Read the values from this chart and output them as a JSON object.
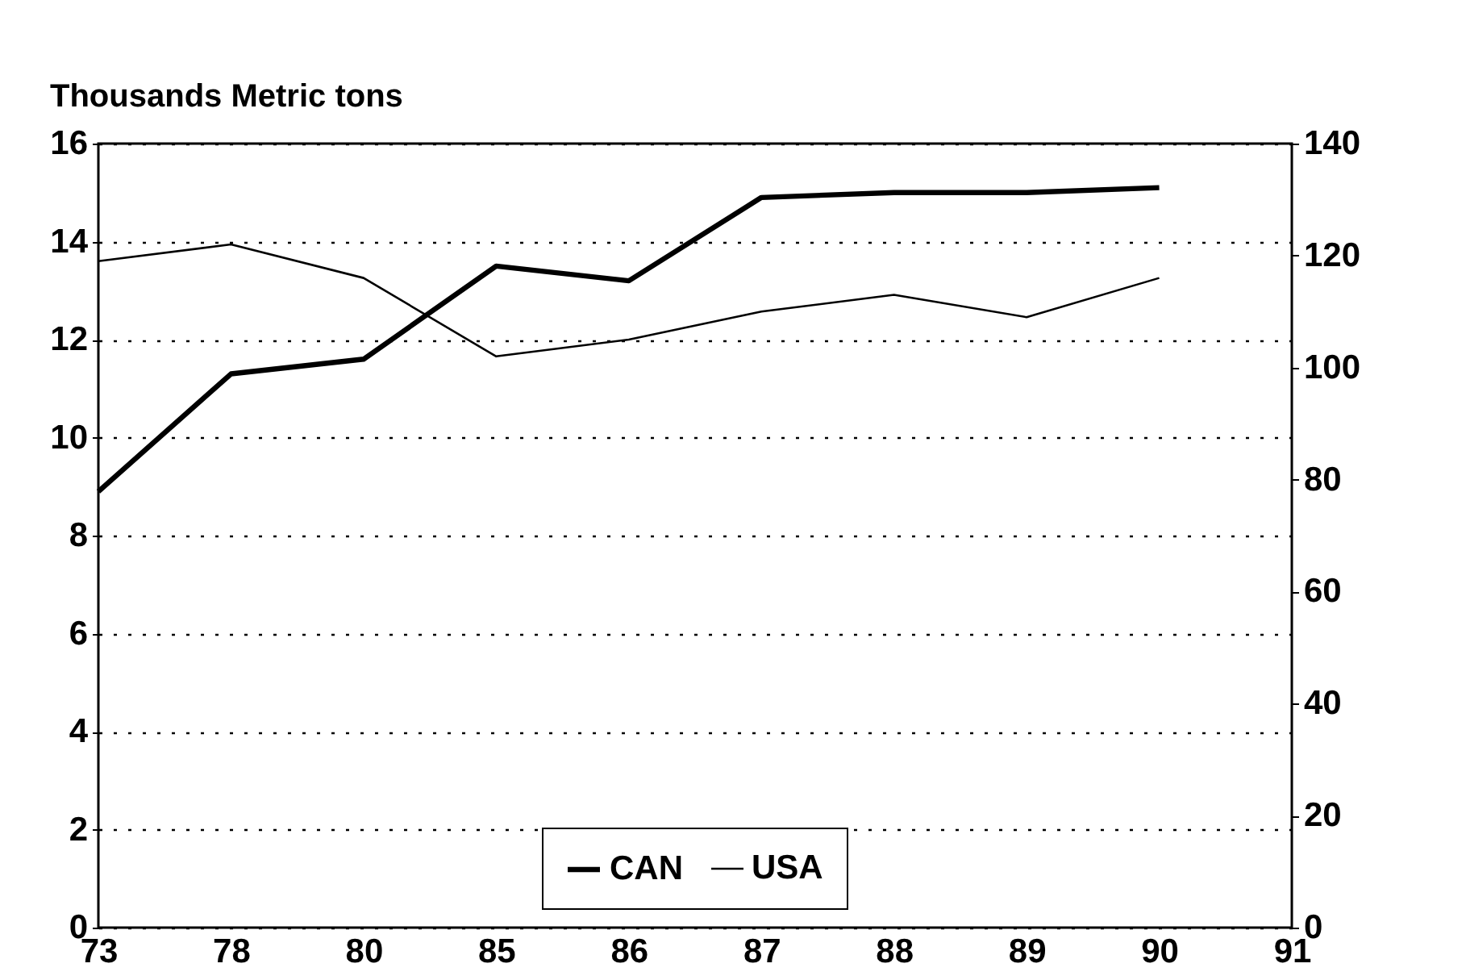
{
  "chart_data": {
    "type": "line",
    "title": "Thousands Metric tons",
    "categories": [
      "73",
      "78",
      "80",
      "85",
      "86",
      "87",
      "88",
      "89",
      "90",
      "91"
    ],
    "series": [
      {
        "name": "CAN",
        "color": "#000000",
        "values": [
          8.9,
          11.3,
          11.6,
          13.5,
          13.2,
          14.9,
          15.0,
          15.0,
          15.1,
          null
        ]
      },
      {
        "name": "USA",
        "color": "#000000",
        "axis": "y2",
        "values": [
          119,
          122,
          116,
          102,
          105,
          110,
          113,
          109,
          116,
          null
        ]
      }
    ],
    "ylim": [
      0,
      16
    ],
    "yticks": [
      0,
      2,
      4,
      6,
      8,
      10,
      12,
      14,
      16
    ],
    "y2lim": [
      0,
      140
    ],
    "y2ticks": [
      0,
      20,
      40,
      60,
      80,
      100,
      120,
      140
    ],
    "grid": "y",
    "legend": "bottom",
    "marker": "none",
    "line_style": "solid"
  }
}
